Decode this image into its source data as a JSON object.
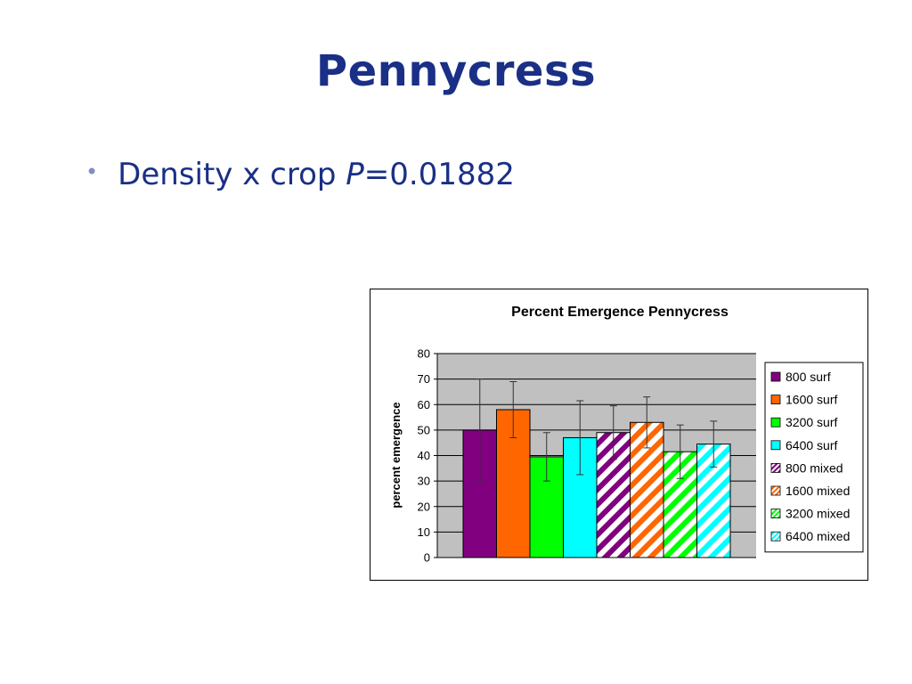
{
  "slide": {
    "title": "Pennycress",
    "bullet": {
      "prefix": "Density x crop ",
      "italic": "P",
      "suffix": "=0.01882"
    }
  },
  "chart_data": {
    "type": "bar",
    "title": "Percent Emergence Pennycress",
    "ylabel": "percent emergence",
    "xlabel": "",
    "ylim": [
      0,
      80
    ],
    "yticks": [
      0,
      10,
      20,
      30,
      40,
      50,
      60,
      70,
      80
    ],
    "grid": true,
    "legend_position": "right",
    "plot_background": "#c0c0c0",
    "series": [
      {
        "name": "800 surf",
        "value": 50,
        "error": 20,
        "color": "#800080",
        "hatched": false
      },
      {
        "name": "1600 surf",
        "value": 58,
        "error": 11,
        "color": "#ff6600",
        "hatched": false
      },
      {
        "name": "3200 surf",
        "value": 39.5,
        "error": 9.5,
        "color": "#00ff00",
        "hatched": false
      },
      {
        "name": "6400 surf",
        "value": 47,
        "error": 14.5,
        "color": "#00ffff",
        "hatched": false
      },
      {
        "name": "800 mixed",
        "value": 49,
        "error": 10.5,
        "color": "#800080",
        "hatched": true
      },
      {
        "name": "1600 mixed",
        "value": 53,
        "error": 10,
        "color": "#ff6600",
        "hatched": true
      },
      {
        "name": "3200 mixed",
        "value": 41.5,
        "error": 10.5,
        "color": "#00ff00",
        "hatched": true
      },
      {
        "name": "6400 mixed",
        "value": 44.5,
        "error": 9,
        "color": "#00ffff",
        "hatched": true
      }
    ]
  }
}
